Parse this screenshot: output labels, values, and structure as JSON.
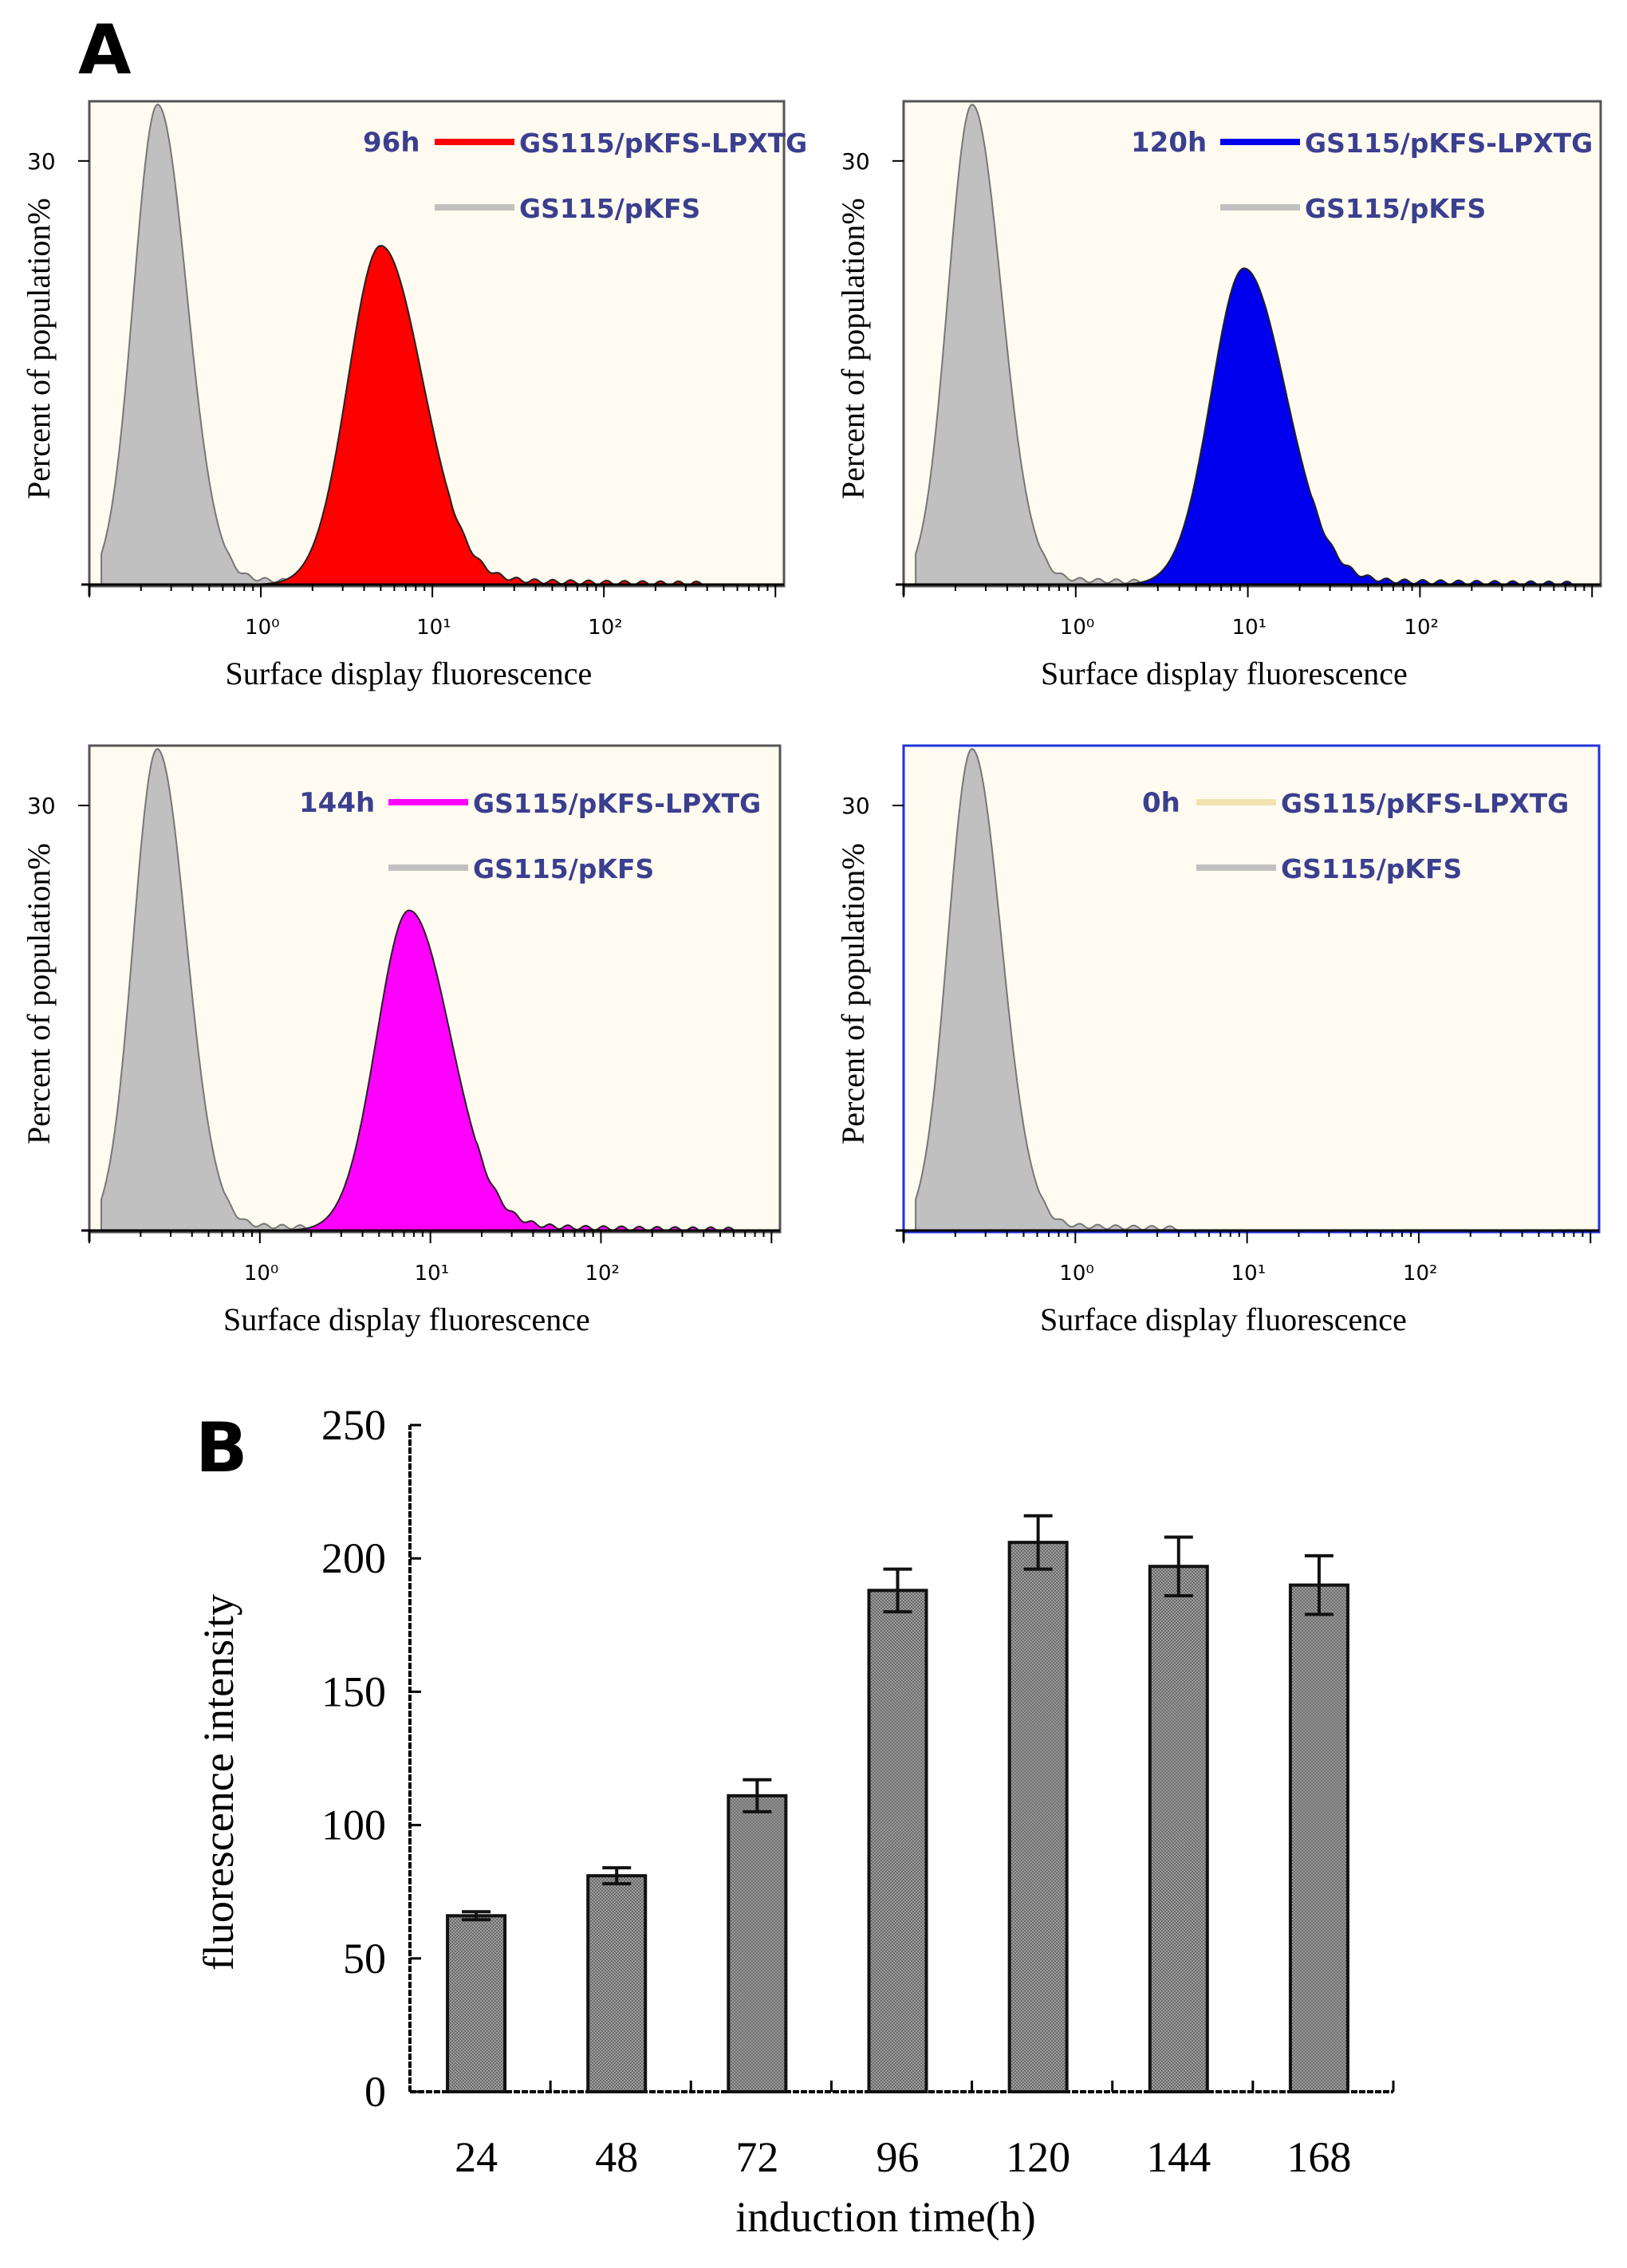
{
  "panel_labels": {
    "a": "A",
    "b": "B"
  },
  "chart_data": [
    {
      "type": "area",
      "title": "96h",
      "xlabel": "Surface display fluorescence",
      "ylabel": "Percent of population%",
      "xscale": "log",
      "xlim_log10": [
        -1,
        3.05
      ],
      "x_ticks": [
        "10⁰",
        "10¹",
        "10²"
      ],
      "y_ticks": [
        "30"
      ],
      "ylim": [
        0,
        34
      ],
      "legend": "top-right",
      "frame_color": "#555555",
      "series": [
        {
          "name": "GS115/pKFS-LPXTG",
          "color": "#ff0000",
          "peak_x": 5.0,
          "peak_pct": 24
        },
        {
          "name": "GS115/pKFS",
          "color": "#c0c0c0",
          "peak_x": 0.25,
          "peak_pct": 34
        }
      ]
    },
    {
      "type": "area",
      "title": "120h",
      "xlabel": "Surface display fluorescence",
      "ylabel": "Percent of population%",
      "xscale": "log",
      "xlim_log10": [
        -1,
        3.05
      ],
      "x_ticks": [
        "10⁰",
        "10¹",
        "10²"
      ],
      "y_ticks": [
        "30"
      ],
      "ylim": [
        0,
        34
      ],
      "legend": "top-right",
      "frame_color": "#555555",
      "series": [
        {
          "name": "GS115/pKFS-LPXTG",
          "color": "#0000ee",
          "peak_x": 9.5,
          "peak_pct": 22.4
        },
        {
          "name": "GS115/pKFS",
          "color": "#c0c0c0",
          "peak_x": 0.25,
          "peak_pct": 34
        }
      ]
    },
    {
      "type": "area",
      "title": "144h",
      "xlabel": "Surface display fluorescence",
      "ylabel": "Percent of population%",
      "xscale": "log",
      "xlim_log10": [
        -1,
        3.05
      ],
      "x_ticks": [
        "10⁰",
        "10¹",
        "10²"
      ],
      "y_ticks": [
        "30"
      ],
      "ylim": [
        0,
        34
      ],
      "legend": "top-right",
      "frame_color": "#555555",
      "series": [
        {
          "name": "GS115/pKFS-LPXTG",
          "color": "#ff00ff",
          "peak_x": 7.5,
          "peak_pct": 22.6
        },
        {
          "name": "GS115/pKFS",
          "color": "#c0c0c0",
          "peak_x": 0.25,
          "peak_pct": 34
        }
      ]
    },
    {
      "type": "area",
      "title": "0h",
      "xlabel": "Surface display fluorescence",
      "ylabel": "Percent of population%",
      "xscale": "log",
      "xlim_log10": [
        -1,
        3.05
      ],
      "x_ticks": [
        "10⁰",
        "10¹",
        "10²"
      ],
      "y_ticks": [
        "30"
      ],
      "ylim": [
        0,
        34
      ],
      "legend": "top-right",
      "frame_color": "#2233dd",
      "series": [
        {
          "name": "GS115/pKFS-LPXTG",
          "color": "#f3e3b0",
          "peak_x": null,
          "peak_pct": 0
        },
        {
          "name": "GS115/pKFS",
          "color": "#c0c0c0",
          "peak_x": 0.25,
          "peak_pct": 34
        }
      ]
    },
    {
      "type": "bar",
      "title": "",
      "xlabel": "induction time(h)",
      "ylabel": "fluorescence intensity",
      "categories": [
        "24",
        "48",
        "72",
        "96",
        "120",
        "144",
        "168"
      ],
      "values": [
        66,
        81,
        111,
        188,
        206,
        197,
        190
      ],
      "errors": [
        1.5,
        3,
        6,
        8,
        10,
        11,
        11
      ],
      "ylim": [
        0,
        250
      ],
      "y_ticks": [
        "0",
        "50",
        "100",
        "150",
        "200",
        "250"
      ],
      "bar_color": "#8a8a8a",
      "grid": false
    }
  ]
}
